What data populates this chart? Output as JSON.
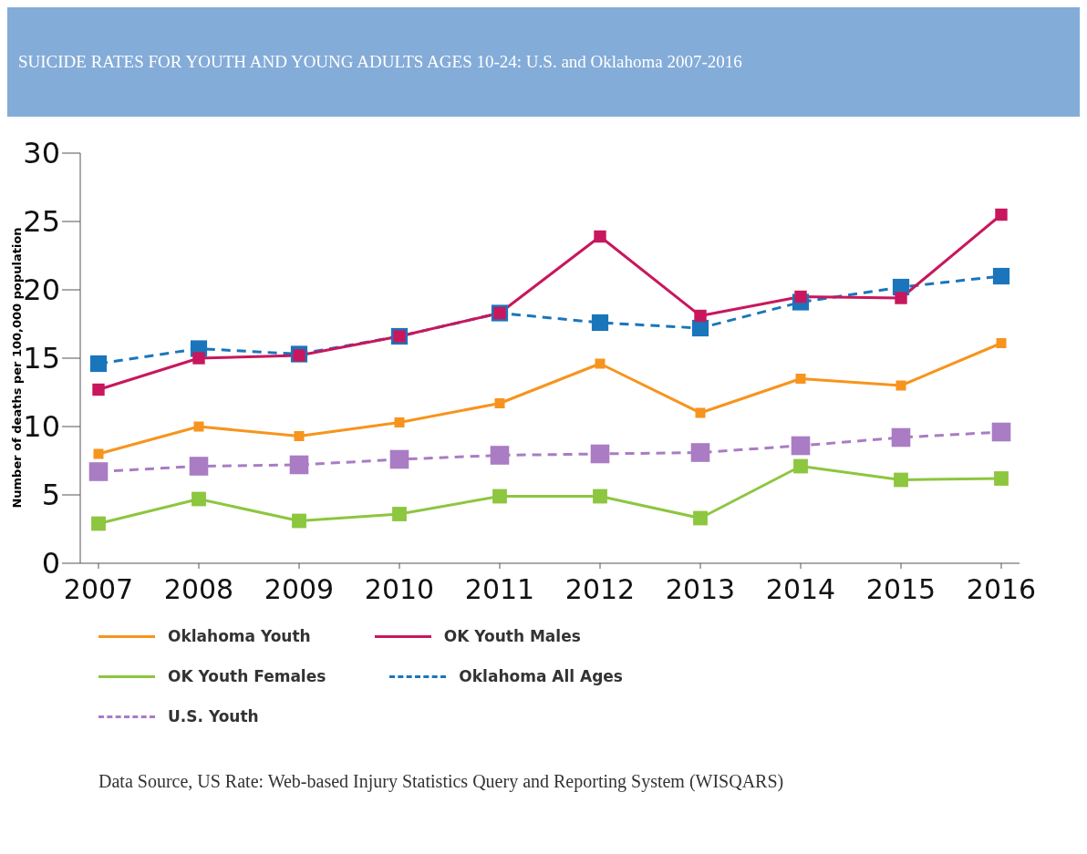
{
  "chart_data": {
    "type": "line",
    "title": "SUICIDE RATES FOR YOUTH AND YOUNG ADULTS AGES 10-24: U.S. and Oklahoma 2007-2016",
    "ylabel": "Number of deaths per 100,000 population",
    "categories": [
      "2007",
      "2008",
      "2009",
      "2010",
      "2011",
      "2012",
      "2013",
      "2014",
      "2015",
      "2016"
    ],
    "series": [
      {
        "name": "Oklahoma Youth",
        "color": "#f7941d",
        "line_style": "solid",
        "values": [
          8.0,
          10.0,
          9.3,
          10.3,
          11.7,
          14.6,
          11.0,
          13.5,
          13.0,
          16.1
        ]
      },
      {
        "name": "OK Youth Males",
        "color": "#c8175d",
        "line_style": "solid",
        "values": [
          12.7,
          15.0,
          15.2,
          16.6,
          18.3,
          23.9,
          18.1,
          19.5,
          19.4,
          25.5
        ]
      },
      {
        "name": "OK Youth Females",
        "color": "#8dc63f",
        "line_style": "solid",
        "values": [
          2.9,
          4.7,
          3.1,
          3.6,
          4.9,
          4.9,
          3.3,
          7.1,
          6.1,
          6.2
        ]
      },
      {
        "name": "Oklahoma All Ages",
        "color": "#1b75bb",
        "line_style": "dashed",
        "values": [
          14.6,
          15.7,
          15.3,
          16.6,
          18.3,
          17.6,
          17.2,
          19.1,
          20.2,
          21.0
        ]
      },
      {
        "name": "U.S. Youth",
        "color": "#a97cc4",
        "line_style": "dashed",
        "values": [
          6.7,
          7.1,
          7.2,
          7.6,
          7.9,
          8.0,
          8.1,
          8.6,
          9.2,
          9.6
        ]
      }
    ],
    "ylim": [
      0,
      30
    ],
    "yticks": [
      0,
      5,
      10,
      15,
      20,
      25,
      30
    ],
    "grid": false,
    "legend": "bottom",
    "marker": "square",
    "annotations": [
      "Data Source, US Rate: Web-based Injury Statistics Query and Reporting System (WISQARS)"
    ]
  }
}
